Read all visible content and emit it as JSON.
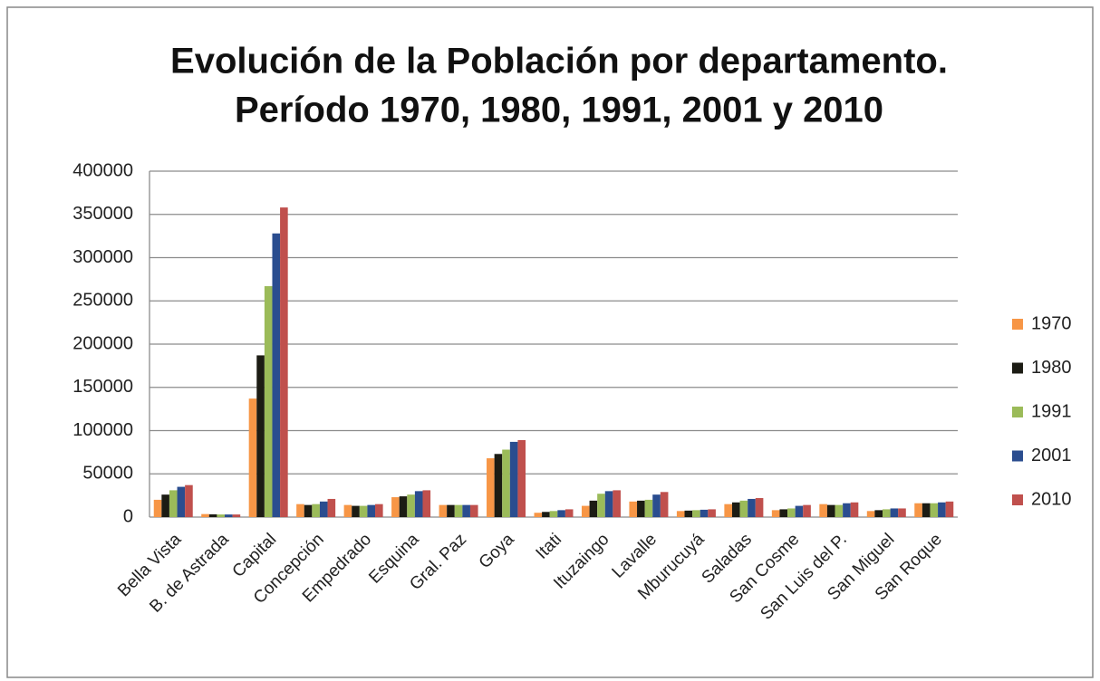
{
  "chart_data": {
    "type": "bar",
    "title": [
      "Evolución de la Población por departamento.",
      "Período 1970, 1980, 1991, 2001 y 2010"
    ],
    "categories": [
      "Bella Vista",
      "B. de Astrada",
      "Capital",
      "Concepción",
      "Empedrado",
      "Esquina",
      "Gral. Paz",
      "Goya",
      "Itati",
      "Ituzaingo",
      "Lavalle",
      "Mburucuyá",
      "Saladas",
      "San Cosme",
      "San Luis del P.",
      "San Miguel",
      "San Roque"
    ],
    "series": [
      {
        "name": "1970",
        "color": "#f79646",
        "values": [
          20000,
          3500,
          137000,
          15000,
          14000,
          23000,
          14000,
          68000,
          5000,
          13000,
          18000,
          7000,
          15000,
          8000,
          15000,
          7000,
          16000
        ]
      },
      {
        "name": "1980",
        "color": "#1c1c14",
        "values": [
          26000,
          3200,
          187000,
          14000,
          13000,
          24000,
          14000,
          73000,
          6000,
          19000,
          19000,
          7500,
          17000,
          9000,
          14000,
          8000,
          16000
        ]
      },
      {
        "name": "1991",
        "color": "#9bbb59",
        "values": [
          31000,
          3000,
          267000,
          15000,
          13000,
          26000,
          14000,
          78000,
          7000,
          27000,
          20000,
          8000,
          19000,
          10000,
          14000,
          9000,
          16000
        ]
      },
      {
        "name": "2001",
        "color": "#2a4d8f",
        "values": [
          35000,
          3000,
          328000,
          18000,
          14000,
          30000,
          14000,
          87000,
          8000,
          30000,
          26000,
          8500,
          21000,
          13000,
          16000,
          10000,
          17000
        ]
      },
      {
        "name": "2010",
        "color": "#c0504d",
        "values": [
          37000,
          3000,
          358000,
          21000,
          15000,
          31000,
          14000,
          89000,
          9000,
          31000,
          29000,
          9000,
          22000,
          14000,
          17000,
          10000,
          18000
        ]
      }
    ],
    "ylim": [
      0,
      400000
    ],
    "yticks": [
      0,
      50000,
      100000,
      150000,
      200000,
      250000,
      300000,
      350000,
      400000
    ],
    "grid": true,
    "legend": "right"
  }
}
